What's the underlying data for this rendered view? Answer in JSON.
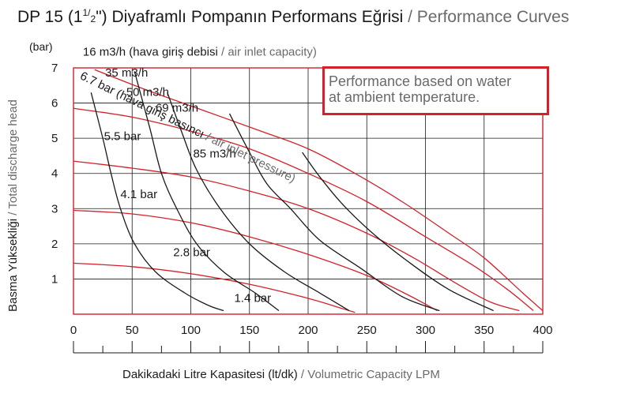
{
  "title": {
    "tr_prefix": "DP 15 (1",
    "frac_num": "1/",
    "frac_den": "2",
    "tr_suffix": "\") Diyaframlı Pompanın Performans Eğrisi",
    "separator": " / ",
    "en": "Performance Curves"
  },
  "note": {
    "line1": "Performance based on water",
    "line2": "at ambient temperature."
  },
  "chart_data": {
    "type": "line",
    "ylabel_tr": "Basma Yüksekliği",
    "ylabel_sep": " / ",
    "ylabel_en": "Total discharge head",
    "yunit": "(bar)",
    "xlabel_tr": "Dakikadaki Litre Kapasitesi (lt/dk)",
    "xlabel_sep": " / ",
    "xlabel_en": "Volumetric Capacity LPM",
    "xlim": [
      0,
      400
    ],
    "ylim": [
      0,
      7
    ],
    "xticks": [
      0,
      50,
      100,
      150,
      200,
      250,
      300,
      350,
      400
    ],
    "yticks": [
      1,
      2,
      3,
      4,
      5,
      6,
      7
    ],
    "grid": true,
    "colors": {
      "air_consumption": "#1a1a1a",
      "pressure": "#d4202a",
      "frame": "#d4202a"
    },
    "air_consumption_series": [
      {
        "name": "16 m3/h",
        "label_tr": "(hava giriş debisi",
        "label_sep": " / ",
        "label_en": "air inlet capacity)",
        "points": [
          [
            15,
            6.3
          ],
          [
            25,
            5.0
          ],
          [
            32,
            4.0
          ],
          [
            40,
            3.0
          ],
          [
            52,
            2.0
          ],
          [
            70,
            1.2
          ],
          [
            95,
            0.6
          ],
          [
            115,
            0.25
          ],
          [
            128,
            0.1
          ]
        ]
      },
      {
        "name": "35 m3/h",
        "points": [
          [
            52,
            6.9
          ],
          [
            65,
            5.3
          ],
          [
            75,
            4.0
          ],
          [
            88,
            3.0
          ],
          [
            105,
            2.0
          ],
          [
            128,
            1.2
          ],
          [
            155,
            0.6
          ],
          [
            175,
            0.1
          ]
        ]
      },
      {
        "name": "50 m3/h",
        "points": [
          [
            80,
            6.3
          ],
          [
            92,
            5.2
          ],
          [
            105,
            4.1
          ],
          [
            125,
            3.0
          ],
          [
            150,
            2.0
          ],
          [
            180,
            1.2
          ],
          [
            210,
            0.6
          ],
          [
            235,
            0.1
          ]
        ]
      },
      {
        "name": "69 m3/h",
        "points": [
          [
            133,
            5.7
          ],
          [
            150,
            4.6
          ],
          [
            165,
            3.7
          ],
          [
            185,
            3.0
          ],
          [
            210,
            2.1
          ],
          [
            245,
            1.3
          ],
          [
            280,
            0.5
          ],
          [
            312,
            0.1
          ]
        ]
      },
      {
        "name": "85 m3/h",
        "points": [
          [
            195,
            4.6
          ],
          [
            210,
            3.9
          ],
          [
            230,
            3.1
          ],
          [
            255,
            2.3
          ],
          [
            285,
            1.5
          ],
          [
            320,
            0.7
          ],
          [
            358,
            0.1
          ]
        ]
      }
    ],
    "pressure_series": [
      {
        "name": "6.7 bar",
        "label_tr": "(hava giriş basıncı",
        "label_sep": " / ",
        "label_en": "air inlet pressure)",
        "points": [
          [
            18,
            6.95
          ],
          [
            60,
            6.4
          ],
          [
            110,
            5.8
          ],
          [
            160,
            5.2
          ],
          [
            200,
            4.7
          ],
          [
            240,
            4.0
          ],
          [
            280,
            3.2
          ],
          [
            320,
            2.3
          ],
          [
            350,
            1.6
          ],
          [
            383,
            0.6
          ],
          [
            400,
            0.1
          ]
        ]
      },
      {
        "name": "5.5 bar",
        "points": [
          [
            0,
            5.85
          ],
          [
            50,
            5.6
          ],
          [
            100,
            5.2
          ],
          [
            150,
            4.7
          ],
          [
            200,
            4.0
          ],
          [
            250,
            3.2
          ],
          [
            300,
            2.2
          ],
          [
            340,
            1.4
          ],
          [
            370,
            0.7
          ],
          [
            392,
            0.1
          ]
        ]
      },
      {
        "name": "4.1 bar",
        "points": [
          [
            0,
            4.35
          ],
          [
            50,
            4.15
          ],
          [
            100,
            3.9
          ],
          [
            150,
            3.5
          ],
          [
            200,
            3.0
          ],
          [
            250,
            2.3
          ],
          [
            290,
            1.6
          ],
          [
            325,
            0.9
          ],
          [
            355,
            0.35
          ],
          [
            380,
            0.1
          ]
        ]
      },
      {
        "name": "2.8 bar",
        "points": [
          [
            0,
            2.95
          ],
          [
            50,
            2.85
          ],
          [
            100,
            2.6
          ],
          [
            150,
            2.2
          ],
          [
            200,
            1.7
          ],
          [
            250,
            1.1
          ],
          [
            285,
            0.55
          ],
          [
            310,
            0.1
          ]
        ]
      },
      {
        "name": "1.4 bar",
        "points": [
          [
            0,
            1.45
          ],
          [
            50,
            1.35
          ],
          [
            100,
            1.15
          ],
          [
            150,
            0.85
          ],
          [
            200,
            0.45
          ],
          [
            230,
            0.15
          ],
          [
            240,
            0.05
          ]
        ]
      }
    ]
  }
}
